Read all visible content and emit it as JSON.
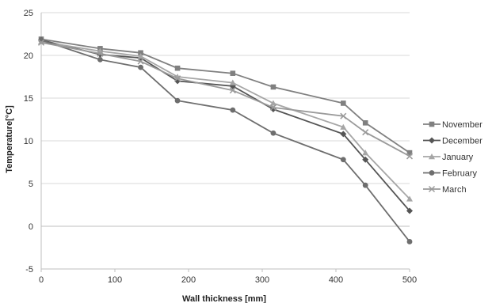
{
  "chart_data": {
    "type": "line",
    "title": "",
    "xlabel": "Wall thickness  [mm]",
    "ylabel": "Temperature[°C]",
    "xlim": [
      0,
      500
    ],
    "ylim": [
      -5,
      25
    ],
    "x_ticks": [
      0,
      100,
      200,
      300,
      400,
      500
    ],
    "y_ticks": [
      -5,
      0,
      5,
      10,
      15,
      20,
      25
    ],
    "grid": "horizontal",
    "legend_position": "right",
    "x": [
      0,
      80,
      135,
      185,
      260,
      315,
      410,
      440,
      500
    ],
    "series": [
      {
        "name": "November",
        "marker": "square",
        "color": "#808080",
        "values": [
          21.9,
          20.8,
          20.3,
          18.5,
          17.9,
          16.3,
          14.4,
          12.1,
          8.6
        ]
      },
      {
        "name": "December",
        "marker": "diamond",
        "color": "#555555",
        "values": [
          21.8,
          20.1,
          19.7,
          17.0,
          16.4,
          13.7,
          10.8,
          7.8,
          1.8
        ]
      },
      {
        "name": "January",
        "marker": "triangle",
        "color": "#a6a6a6",
        "values": [
          21.6,
          20.5,
          19.9,
          17.5,
          16.8,
          14.4,
          11.6,
          8.6,
          3.2
        ]
      },
      {
        "name": "February",
        "marker": "circle",
        "color": "#6e6e6e",
        "values": [
          21.8,
          19.5,
          18.6,
          14.7,
          13.6,
          10.9,
          7.8,
          4.8,
          -1.8
        ]
      },
      {
        "name": "March",
        "marker": "x",
        "color": "#9a9a9a",
        "values": [
          21.5,
          20.2,
          19.3,
          17.3,
          15.9,
          13.9,
          12.9,
          11.0,
          8.2
        ]
      }
    ]
  }
}
